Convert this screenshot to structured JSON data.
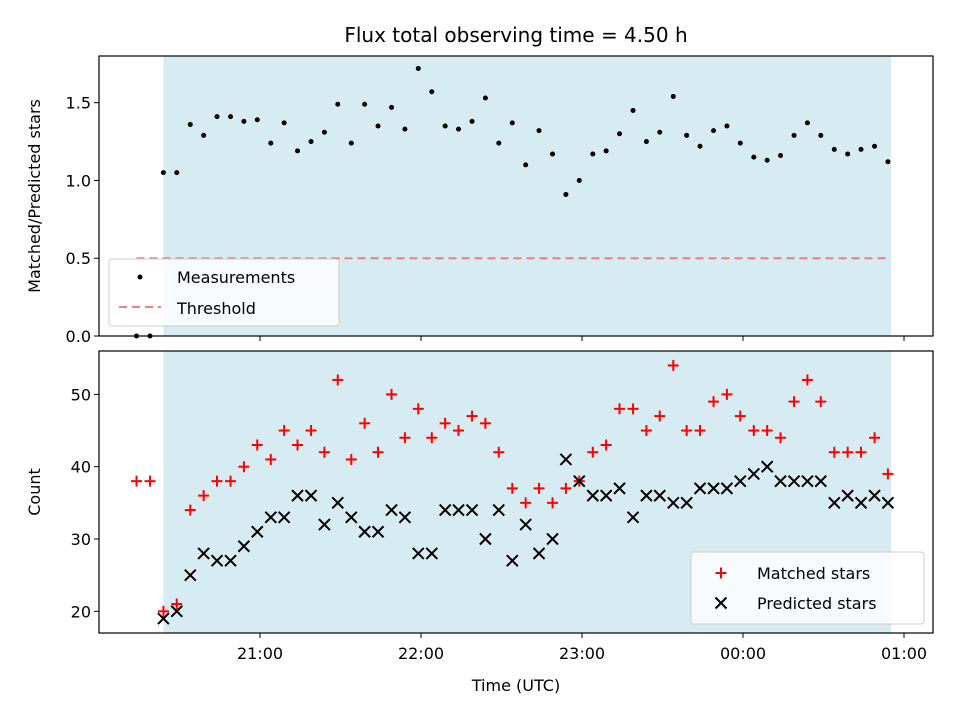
{
  "chart_data": {
    "type": "scatter",
    "title": "Flux total observing time = 4.50 h",
    "xlabel": "Time (UTC)",
    "x_tick_labels": [
      "21:00",
      "22:00",
      "23:00",
      "00:00",
      "01:00"
    ],
    "x_tick_hours": [
      21,
      22,
      23,
      24,
      25
    ],
    "x_range_hours": [
      20.0,
      25.18
    ],
    "observing_window_hours": [
      20.4,
      24.92
    ],
    "colors": {
      "window": "#d4eaf1",
      "measurements": "#000000",
      "threshold": "#f08080",
      "matched": "#ff0000",
      "predicted": "#000000"
    },
    "x_hours": [
      20.233,
      20.317,
      20.4,
      20.483,
      20.567,
      20.65,
      20.733,
      20.817,
      20.9,
      20.983,
      21.067,
      21.15,
      21.233,
      21.317,
      21.4,
      21.483,
      21.567,
      21.65,
      21.733,
      21.817,
      21.9,
      21.983,
      22.067,
      22.15,
      22.233,
      22.317,
      22.4,
      22.483,
      22.567,
      22.65,
      22.733,
      22.817,
      22.9,
      22.983,
      23.067,
      23.15,
      23.233,
      23.317,
      23.4,
      23.483,
      23.567,
      23.65,
      23.733,
      23.817,
      23.9,
      23.983,
      24.067,
      24.15,
      24.233,
      24.317,
      24.4,
      24.483,
      24.567,
      24.65,
      24.733,
      24.817,
      24.9
    ],
    "panels": [
      {
        "ylabel": "Matched/Predicted stars",
        "ylim": [
          0,
          1.8
        ],
        "y_ticks": [
          0.0,
          0.5,
          1.0,
          1.5
        ],
        "y_tick_labels": [
          "0.0",
          "0.5",
          "1.0",
          "1.5"
        ],
        "threshold": 0.5,
        "threshold_range_hours": [
          20.233,
          24.9
        ],
        "legend": {
          "placement": "lower-left",
          "entries": [
            "Measurements",
            "Threshold"
          ]
        },
        "series": [
          {
            "name": "Measurements",
            "marker": "dot",
            "values": [
              0.0,
              0.0,
              1.05,
              1.05,
              1.36,
              1.29,
              1.41,
              1.41,
              1.38,
              1.39,
              1.24,
              1.37,
              1.19,
              1.25,
              1.31,
              1.49,
              1.24,
              1.49,
              1.35,
              1.47,
              1.33,
              1.72,
              1.57,
              1.35,
              1.33,
              1.38,
              1.53,
              1.24,
              1.37,
              1.1,
              1.32,
              1.17,
              0.91,
              1.0,
              1.17,
              1.19,
              1.3,
              1.45,
              1.25,
              1.31,
              1.54,
              1.29,
              1.22,
              1.32,
              1.35,
              1.24,
              1.15,
              1.13,
              1.16,
              1.29,
              1.37,
              1.29,
              1.2,
              1.17,
              1.2,
              1.22,
              1.12
            ]
          }
        ]
      },
      {
        "ylabel": "Count",
        "ylim": [
          17,
          56
        ],
        "y_ticks": [
          20,
          30,
          40,
          50
        ],
        "y_tick_labels": [
          "20",
          "30",
          "40",
          "50"
        ],
        "legend": {
          "placement": "lower-right",
          "entries": [
            "Matched stars",
            "Predicted stars"
          ]
        },
        "series": [
          {
            "name": "Matched stars",
            "marker": "plus",
            "values": [
              38,
              38,
              20,
              21,
              34,
              36,
              38,
              38,
              40,
              43,
              41,
              45,
              43,
              45,
              42,
              52,
              41,
              46,
              42,
              50,
              44,
              48,
              44,
              46,
              45,
              47,
              46,
              42,
              37,
              35,
              37,
              35,
              37,
              38,
              42,
              43,
              48,
              48,
              45,
              47,
              54,
              45,
              45,
              49,
              50,
              47,
              45,
              45,
              44,
              49,
              52,
              49,
              42,
              42,
              42,
              44,
              39
            ]
          },
          {
            "name": "Predicted stars",
            "marker": "x",
            "values": [
              null,
              null,
              19,
              20,
              25,
              28,
              27,
              27,
              29,
              31,
              33,
              33,
              36,
              36,
              32,
              35,
              33,
              31,
              31,
              34,
              33,
              28,
              28,
              34,
              34,
              34,
              30,
              34,
              27,
              32,
              28,
              30,
              41,
              38,
              36,
              36,
              37,
              33,
              36,
              36,
              35,
              35,
              37,
              37,
              37,
              38,
              39,
              40,
              38,
              38,
              38,
              38,
              35,
              36,
              35,
              36,
              35
            ]
          }
        ]
      }
    ]
  }
}
